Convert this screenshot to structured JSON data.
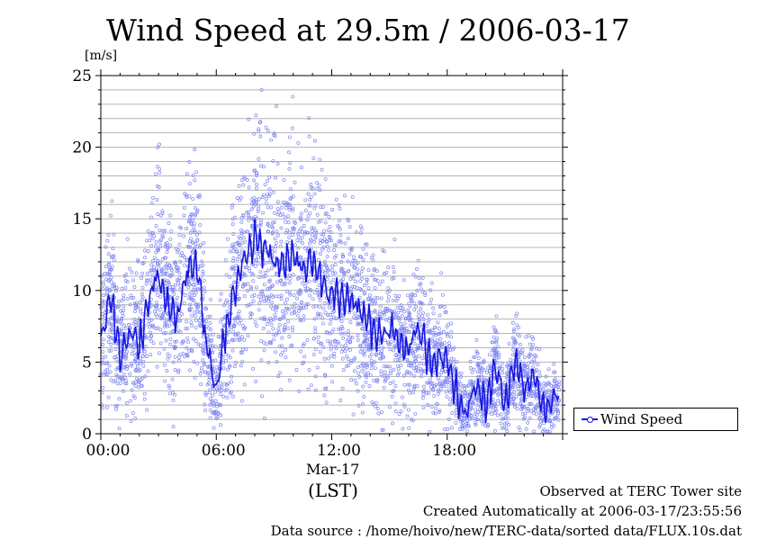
{
  "chart_data": {
    "type": "scatter",
    "title": "Wind Speed at 29.5m / 2006-03-17",
    "ylabel": "[m/s]",
    "ylim": [
      0,
      25
    ],
    "yticks": [
      "0",
      "5",
      "10",
      "15",
      "20",
      "25"
    ],
    "xlim": [
      "00:00",
      "24:00"
    ],
    "xticks": [
      "00:00",
      "06:00",
      "12:00",
      "18:00"
    ],
    "date_label": "Mar-17",
    "tz_label": "(LST)",
    "grid": true,
    "legend": "right",
    "series": [
      {
        "name": "Wind Speed",
        "type": "line",
        "x": [
          "00:00",
          "00:30",
          "01:00",
          "01:30",
          "02:00",
          "02:30",
          "03:00",
          "03:30",
          "04:00",
          "04:30",
          "05:00",
          "05:30",
          "06:00",
          "06:30",
          "07:00",
          "07:30",
          "08:00",
          "08:30",
          "09:00",
          "09:30",
          "10:00",
          "10:30",
          "11:00",
          "11:30",
          "12:00",
          "12:30",
          "13:00",
          "13:30",
          "14:00",
          "14:30",
          "15:00",
          "15:30",
          "16:00",
          "16:30",
          "17:00",
          "17:30",
          "18:00",
          "18:30",
          "19:00",
          "19:30",
          "20:00",
          "20:30",
          "21:00",
          "21:30",
          "22:00",
          "22:30",
          "23:00",
          "23:30",
          "23:50"
        ],
        "values": [
          6.5,
          9.5,
          5.5,
          7.0,
          6.2,
          9.3,
          11.0,
          8.6,
          8.2,
          11.5,
          11.8,
          6.0,
          3.3,
          7.2,
          10.2,
          12.1,
          13.6,
          13.0,
          12.3,
          11.5,
          12.7,
          11.2,
          12.0,
          10.5,
          9.4,
          9.8,
          9.0,
          8.6,
          7.5,
          6.8,
          7.6,
          6.3,
          6.0,
          7.2,
          5.6,
          5.1,
          5.4,
          2.6,
          1.4,
          3.6,
          2.2,
          4.7,
          2.0,
          5.2,
          3.1,
          4.2,
          1.7,
          2.3,
          2.1
        ]
      },
      {
        "name": "",
        "type": "scatter",
        "note_values": "10s samples shown as open circles"
      }
    ],
    "colors": {
      "line": "#1515e0",
      "points": "#7f86f2",
      "grid": "#b4b4b4"
    }
  },
  "footer": {
    "site": "Observed at TERC Tower site",
    "created": "Created Automatically at 2006-03-17/23:55:56",
    "source": "Data source : /home/hoivo/new/TERC-data/sorted  data/FLUX.10s.dat"
  }
}
